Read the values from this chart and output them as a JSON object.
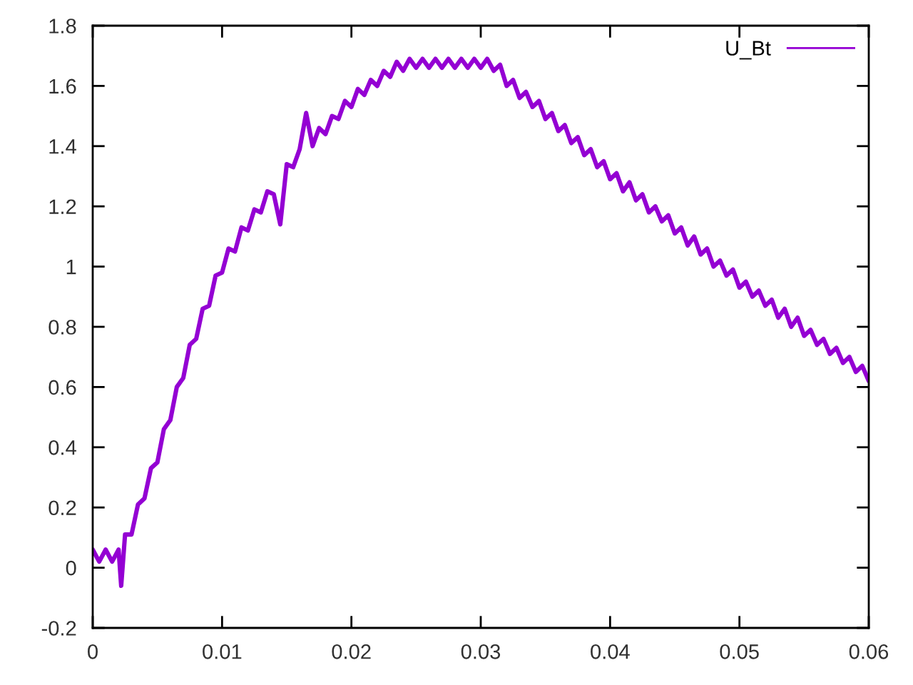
{
  "chart_data": {
    "type": "line",
    "series": [
      {
        "name": "U_Bt",
        "color": "#9400d3",
        "x": [
          0,
          0.0005,
          0.001,
          0.0015,
          0.002,
          0.0022,
          0.0025,
          0.003,
          0.0035,
          0.004,
          0.0045,
          0.005,
          0.0055,
          0.006,
          0.0065,
          0.007,
          0.0075,
          0.008,
          0.0085,
          0.009,
          0.0095,
          0.01,
          0.0105,
          0.011,
          0.0115,
          0.012,
          0.0125,
          0.013,
          0.0135,
          0.014,
          0.0145,
          0.015,
          0.0155,
          0.016,
          0.0165,
          0.017,
          0.0175,
          0.018,
          0.0185,
          0.019,
          0.0195,
          0.02,
          0.0205,
          0.021,
          0.0215,
          0.022,
          0.0225,
          0.023,
          0.0235,
          0.024,
          0.0245,
          0.025,
          0.0255,
          0.026,
          0.0265,
          0.027,
          0.0275,
          0.028,
          0.0285,
          0.029,
          0.0295,
          0.03,
          0.0305,
          0.031,
          0.0315,
          0.032,
          0.0325,
          0.033,
          0.0335,
          0.034,
          0.0345,
          0.035,
          0.0355,
          0.036,
          0.0365,
          0.037,
          0.0375,
          0.038,
          0.0385,
          0.039,
          0.0395,
          0.04,
          0.0405,
          0.041,
          0.0415,
          0.042,
          0.0425,
          0.043,
          0.0435,
          0.044,
          0.0445,
          0.045,
          0.0455,
          0.046,
          0.0465,
          0.047,
          0.0475,
          0.048,
          0.0485,
          0.049,
          0.0495,
          0.05,
          0.0505,
          0.051,
          0.0515,
          0.052,
          0.0525,
          0.053,
          0.0535,
          0.054,
          0.0545,
          0.055,
          0.0555,
          0.056,
          0.0565,
          0.057,
          0.0575,
          0.058,
          0.0585,
          0.059,
          0.0595,
          0.06
        ],
        "values": [
          0.06,
          0.02,
          0.06,
          0.02,
          0.06,
          -0.06,
          0.11,
          0.11,
          0.21,
          0.23,
          0.33,
          0.35,
          0.46,
          0.49,
          0.6,
          0.63,
          0.74,
          0.76,
          0.86,
          0.87,
          0.97,
          0.98,
          1.06,
          1.05,
          1.13,
          1.12,
          1.19,
          1.18,
          1.25,
          1.24,
          1.14,
          1.34,
          1.33,
          1.39,
          1.51,
          1.4,
          1.46,
          1.44,
          1.5,
          1.49,
          1.55,
          1.53,
          1.59,
          1.57,
          1.62,
          1.6,
          1.65,
          1.63,
          1.68,
          1.65,
          1.69,
          1.66,
          1.69,
          1.66,
          1.69,
          1.66,
          1.69,
          1.66,
          1.69,
          1.66,
          1.69,
          1.66,
          1.69,
          1.65,
          1.67,
          1.6,
          1.62,
          1.56,
          1.58,
          1.53,
          1.55,
          1.49,
          1.51,
          1.45,
          1.47,
          1.41,
          1.43,
          1.37,
          1.39,
          1.33,
          1.35,
          1.29,
          1.31,
          1.25,
          1.28,
          1.22,
          1.24,
          1.18,
          1.2,
          1.15,
          1.17,
          1.11,
          1.13,
          1.07,
          1.1,
          1.04,
          1.06,
          1.0,
          1.02,
          0.97,
          0.99,
          0.93,
          0.95,
          0.9,
          0.92,
          0.87,
          0.89,
          0.83,
          0.86,
          0.8,
          0.83,
          0.77,
          0.79,
          0.74,
          0.76,
          0.71,
          0.73,
          0.68,
          0.7,
          0.65,
          0.67,
          0.62
        ]
      }
    ],
    "xlim": [
      0,
      0.06
    ],
    "xticks": [
      0,
      0.01,
      0.02,
      0.03,
      0.04,
      0.05,
      0.06
    ],
    "ylim": [
      -0.2,
      1.8
    ],
    "yticks": [
      -0.2,
      0,
      0.2,
      0.4,
      0.6,
      0.8,
      1,
      1.2,
      1.4,
      1.6,
      1.8
    ],
    "grid": false,
    "legend": "top right",
    "line_style": "solid",
    "marker": "none"
  }
}
